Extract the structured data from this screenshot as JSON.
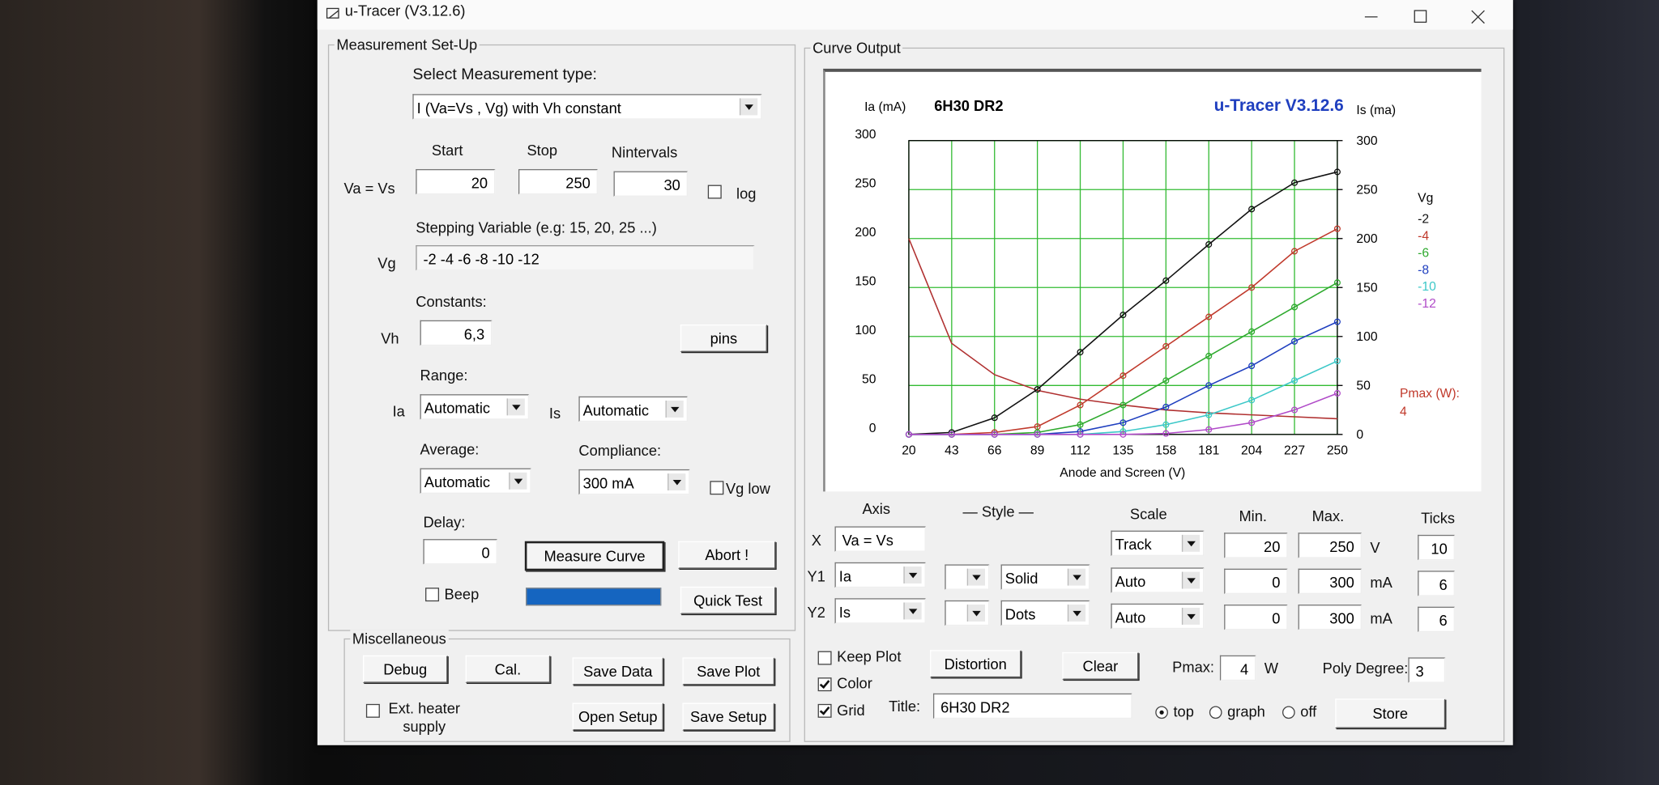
{
  "window": {
    "title": "u-Tracer (V3.12.6)"
  },
  "setup": {
    "title": "Measurement Set-Up",
    "select_label": "Select Measurement type:",
    "measurement_type": "I (Va=Vs , Vg) with Vh constant",
    "start_label": "Start",
    "stop_label": "Stop",
    "nintervals_label": "Nintervals",
    "sweep_label": "Va = Vs",
    "start": 20,
    "stop": 250,
    "nintervals": 30,
    "log": "log",
    "stepping_label": "Stepping Variable (e.g: 15, 20, 25 ...)",
    "vg_label": "Vg",
    "vg_value": "-2 -4 -6 -8 -10 -12",
    "constants_label": "Constants:",
    "vh_label": "Vh",
    "vh_value": "6,3",
    "pins": "pins",
    "range_label": "Range:",
    "ia_label": "Ia",
    "ia_range": "Automatic",
    "is_label": "Is",
    "is_range": "Automatic",
    "average_label": "Average:",
    "average": "Automatic",
    "compliance_label": "Compliance:",
    "compliance": "300 mA",
    "vg_low": "Vg low",
    "delay_label": "Delay:",
    "delay": 0,
    "measure": "Measure Curve",
    "abort": "Abort !",
    "beep": "Beep",
    "quick_test": "Quick Test"
  },
  "misc": {
    "title": "Miscellaneous",
    "debug": "Debug",
    "cal": "Cal.",
    "save_data": "Save Data",
    "save_plot": "Save Plot",
    "ext_heater": "Ext. heater supply",
    "open_setup": "Open Setup",
    "save_setup": "Save Setup"
  },
  "output": {
    "title": "Curve Output",
    "plot": {
      "type": "line",
      "title": "6H30 DR2",
      "brand": "u-Tracer V3.12.6",
      "y_label": "Ia (mA)",
      "y2_label": "Is (ma)",
      "x_label": "Anode and Screen (V)",
      "x": [
        20,
        43,
        66,
        89,
        112,
        135,
        158,
        181,
        204,
        227,
        250
      ],
      "xlim": [
        20,
        250
      ],
      "xticks": [
        20,
        43,
        66,
        89,
        112,
        135,
        158,
        181,
        204,
        227,
        250
      ],
      "ylim": [
        0,
        300
      ],
      "yticks": [
        0,
        50,
        100,
        150,
        200,
        250,
        300
      ],
      "y2lim": [
        0,
        300
      ],
      "y2ticks": [
        0,
        50,
        100,
        150,
        200,
        250,
        300
      ],
      "grid": true,
      "legend_title": "Vg",
      "series": [
        {
          "name": "-2",
          "color": "#111111",
          "values": [
            0,
            2,
            17,
            46,
            84,
            122,
            157,
            194,
            230,
            257,
            268
          ]
        },
        {
          "name": "-4",
          "color": "#c0392b",
          "values": [
            0,
            0,
            2,
            8,
            30,
            60,
            90,
            120,
            150,
            187,
            210
          ]
        },
        {
          "name": "-6",
          "color": "#2eaa2e",
          "values": [
            0,
            0,
            0,
            2,
            10,
            30,
            55,
            80,
            105,
            130,
            155
          ]
        },
        {
          "name": "-8",
          "color": "#1f3fbf",
          "values": [
            0,
            0,
            0,
            0,
            3,
            12,
            28,
            50,
            70,
            95,
            115
          ]
        },
        {
          "name": "-10",
          "color": "#3cc8c8",
          "values": [
            0,
            0,
            0,
            0,
            0,
            3,
            10,
            20,
            35,
            55,
            75
          ]
        },
        {
          "name": "-12",
          "color": "#b04ac8",
          "values": [
            0,
            0,
            0,
            0,
            0,
            0,
            1,
            5,
            12,
            25,
            42
          ]
        }
      ],
      "pmax": {
        "label": "Pmax (W):",
        "value": 4,
        "color": "#b03030",
        "values": [
          200,
          93,
          61,
          45,
          36,
          30,
          25,
          22,
          20,
          18,
          16
        ]
      }
    },
    "axis_header": "Axis",
    "style_header": "— Style —",
    "scale_header": "Scale",
    "min_header": "Min.",
    "max_header": "Max.",
    "ticks_header": "Ticks",
    "rows": [
      {
        "axis": "X",
        "var": "Va = Vs",
        "scale": "Track",
        "min": 20,
        "max": 250,
        "unit": "V",
        "ticks": 10
      },
      {
        "axis": "Y1",
        "var": "Ia",
        "style": "Solid",
        "scale": "Auto",
        "min": 0,
        "max": 300,
        "unit": "mA",
        "ticks": 6
      },
      {
        "axis": "Y2",
        "var": "Is",
        "style": "Dots",
        "scale": "Auto",
        "min": 0,
        "max": 300,
        "unit": "mA",
        "ticks": 6
      }
    ],
    "keep_plot": "Keep Plot",
    "color": "Color",
    "grid": "Grid",
    "distortion": "Distortion",
    "clear": "Clear",
    "pmax_label": "Pmax:",
    "pmax": 4,
    "pmax_unit": "W",
    "poly_label": "Poly Degree:",
    "poly": 3,
    "title_label": "Title:",
    "title_value": "6H30 DR2",
    "radio_top": "top",
    "radio_graph": "graph",
    "radio_off": "off",
    "store": "Store"
  }
}
